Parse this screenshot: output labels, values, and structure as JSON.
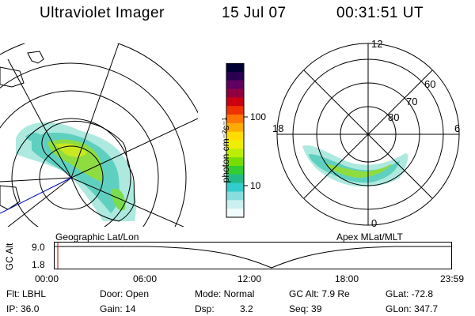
{
  "header": {
    "instrument": "Ultraviolet Imager",
    "date": "15 Jul 07",
    "time": "00:31:51 UT"
  },
  "colorbar": {
    "unit_label": "photon cm⁻²s⁻¹",
    "ticks": [
      "100",
      "10"
    ],
    "colors": [
      "#000033",
      "#2a0050",
      "#600060",
      "#900040",
      "#cc0010",
      "#ee3300",
      "#ff7700",
      "#ffaa00",
      "#ffdd00",
      "#eeee00",
      "#bbee00",
      "#77dd00",
      "#33cc33",
      "#22bb88",
      "#33cccc",
      "#88dddd",
      "#ccf0f0",
      "#f2fbfb"
    ]
  },
  "geo_panel": {
    "label": "Geographic Lat/Lon"
  },
  "polar_panel": {
    "label": "Apex MLat/MLT",
    "mlt_labels": {
      "top": "12",
      "left": "18",
      "right": "6",
      "bottom": "0"
    },
    "lat_labels": [
      "60",
      "70",
      "80"
    ]
  },
  "altitude_plot": {
    "ylabel": "GC Alt",
    "yticks": [
      "9.0",
      "1.8"
    ],
    "xticks": [
      "00:00",
      "06:00",
      "12:00",
      "18:00",
      "23:59"
    ]
  },
  "footer": {
    "filter": "Flt: LBHL",
    "door": "Door: Open",
    "mode": "Mode: Normal",
    "gc_alt": "GC Alt: 7.9 Re",
    "glat": "GLat: -72.8",
    "ip": "IP: 36.0",
    "gain": "Gain: 14",
    "dsp_label": "Dsp:",
    "dsp_value": "3.2",
    "seq": "Seq: 39",
    "glon": "GLon: 347.7"
  }
}
